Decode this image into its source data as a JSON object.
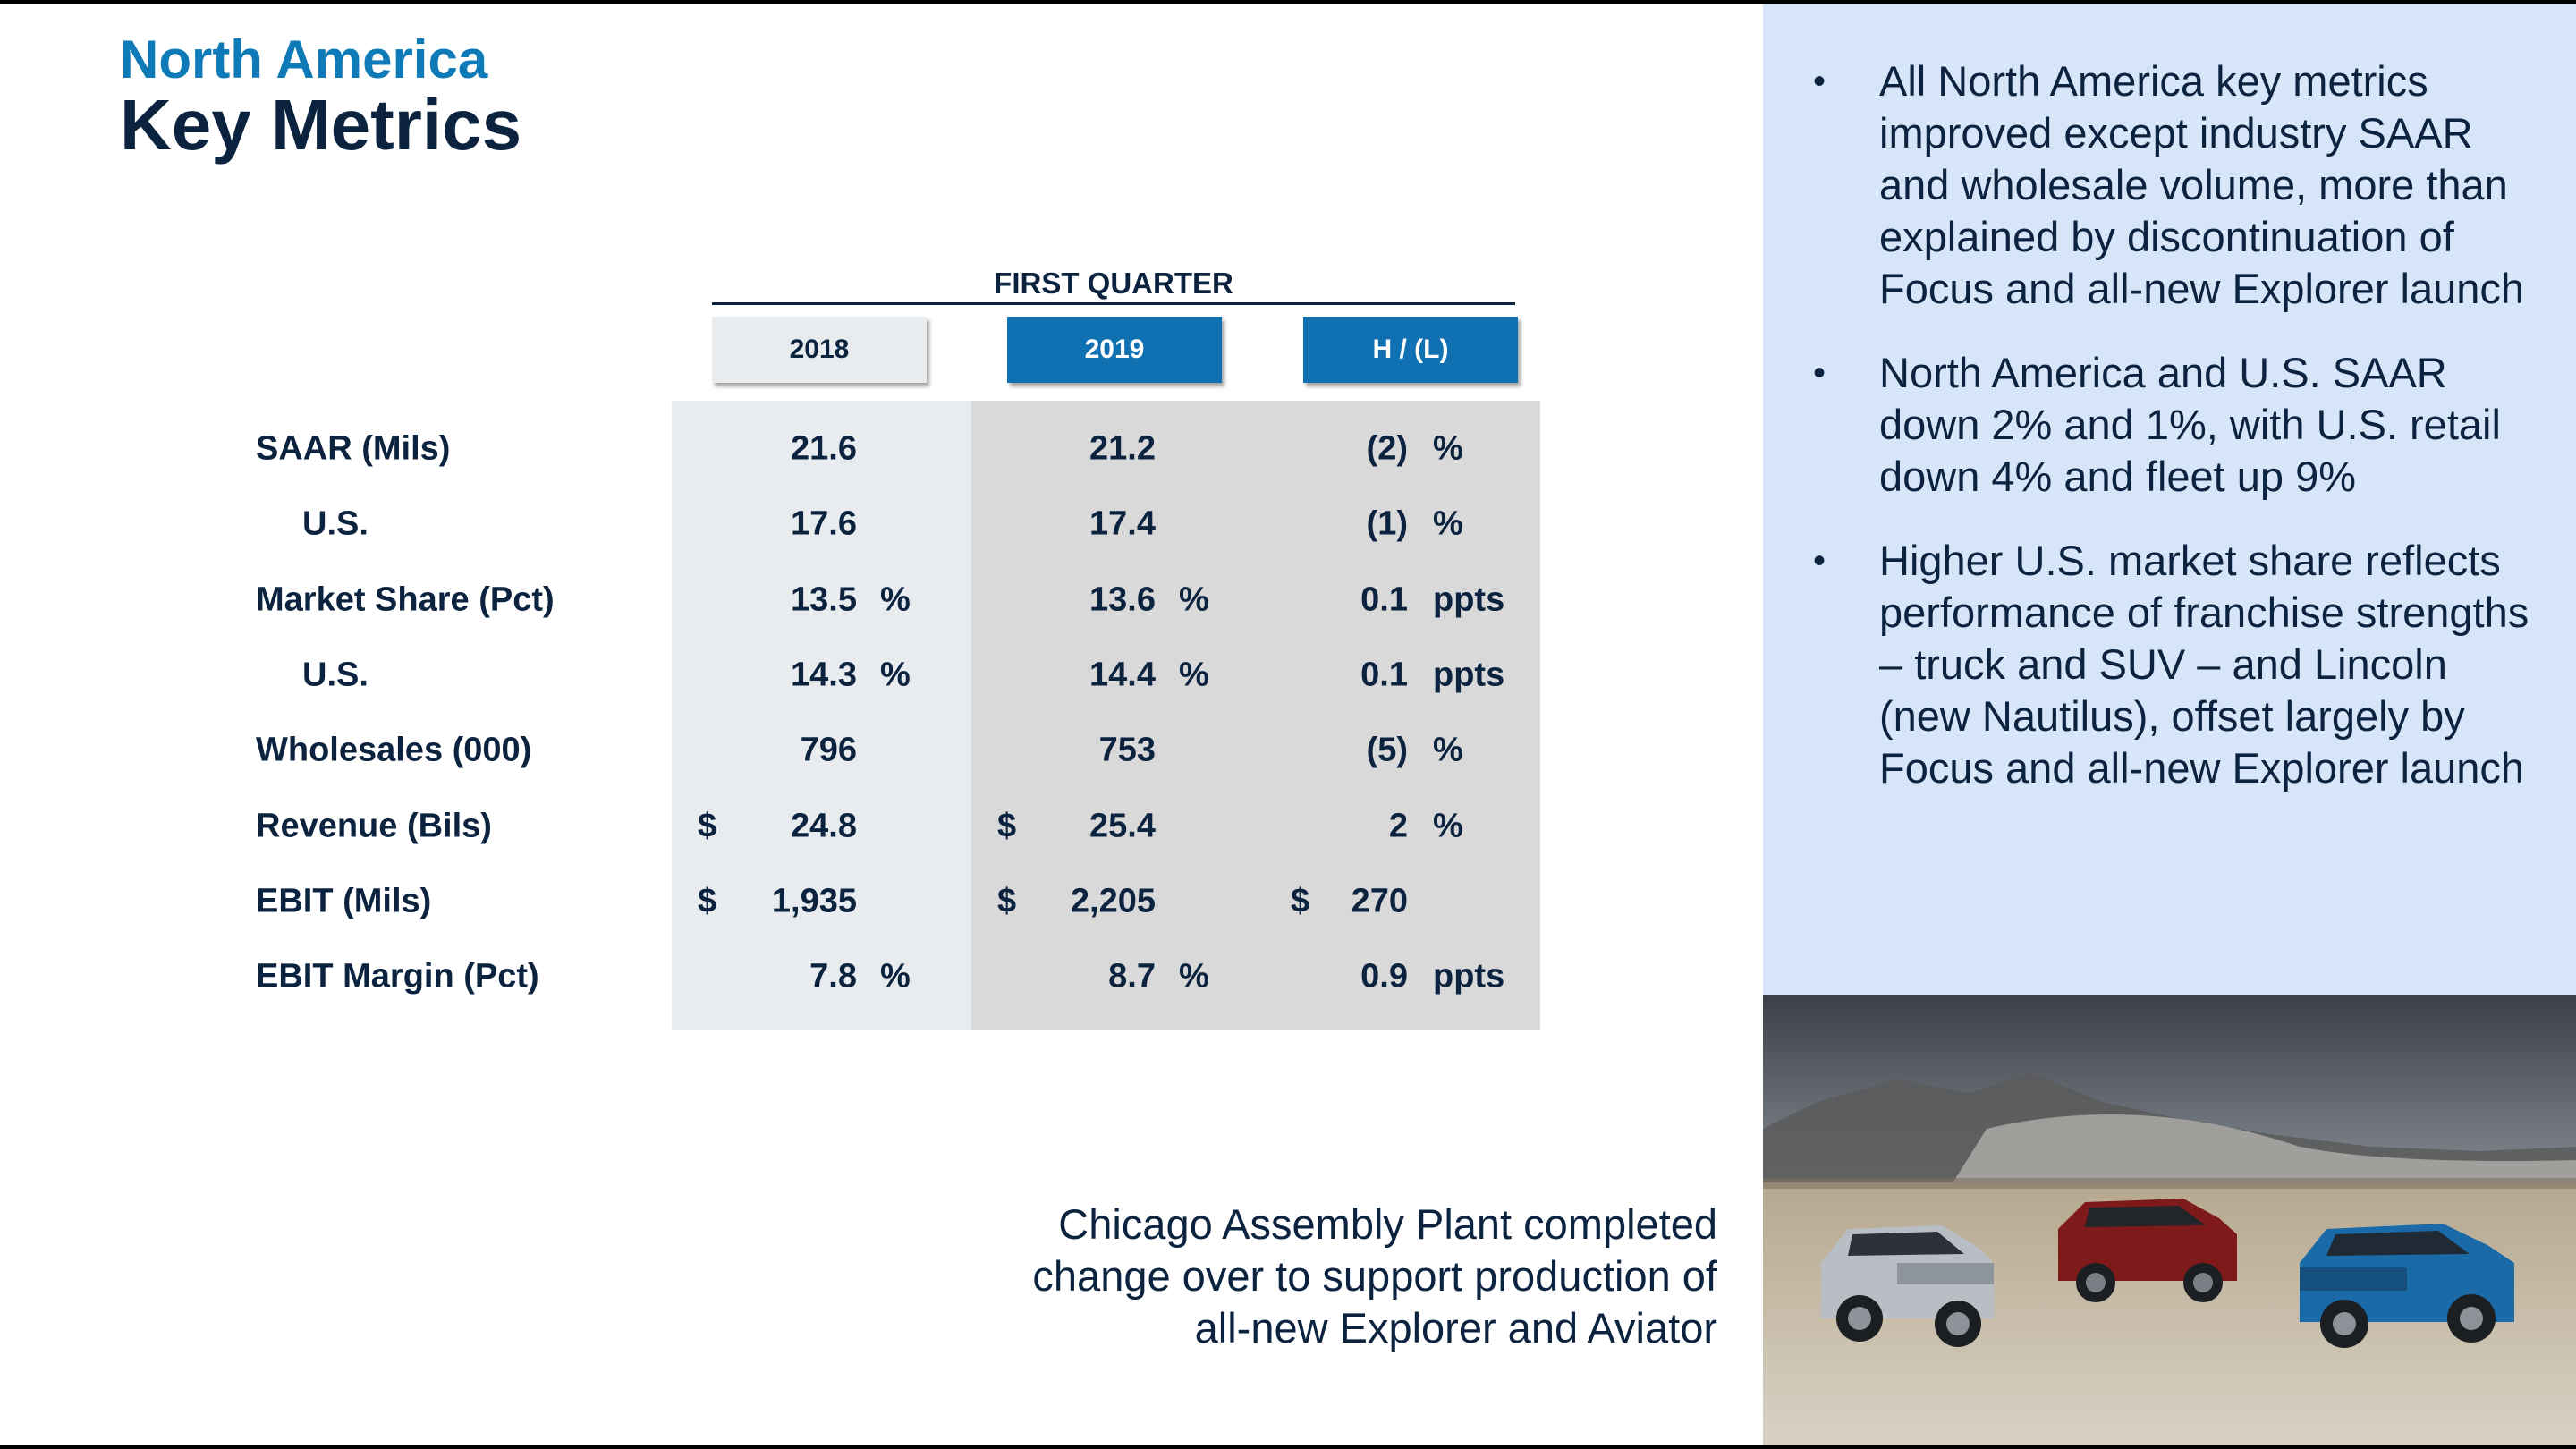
{
  "header": {
    "region": "North America",
    "title": "Key Metrics"
  },
  "table": {
    "group_label": "FIRST QUARTER",
    "columns": [
      "2018",
      "2019",
      "H / (L)"
    ],
    "rows": [
      {
        "label": "SAAR (Mils)",
        "indent": false,
        "c2018": {
          "cur": "",
          "val": "21.6",
          "unit": ""
        },
        "c2019": {
          "cur": "",
          "val": "21.2",
          "unit": ""
        },
        "chg": {
          "cur": "",
          "val": "(2)",
          "unit": "%"
        }
      },
      {
        "label": "U.S.",
        "indent": true,
        "c2018": {
          "cur": "",
          "val": "17.6",
          "unit": ""
        },
        "c2019": {
          "cur": "",
          "val": "17.4",
          "unit": ""
        },
        "chg": {
          "cur": "",
          "val": "(1)",
          "unit": "%"
        }
      },
      {
        "label": "Market Share (Pct)",
        "indent": false,
        "c2018": {
          "cur": "",
          "val": "13.5",
          "unit": "%"
        },
        "c2019": {
          "cur": "",
          "val": "13.6",
          "unit": "%"
        },
        "chg": {
          "cur": "",
          "val": "0.1",
          "unit": "ppts"
        }
      },
      {
        "label": "U.S.",
        "indent": true,
        "c2018": {
          "cur": "",
          "val": "14.3",
          "unit": "%"
        },
        "c2019": {
          "cur": "",
          "val": "14.4",
          "unit": "%"
        },
        "chg": {
          "cur": "",
          "val": "0.1",
          "unit": "ppts"
        }
      },
      {
        "label": "Wholesales (000)",
        "indent": false,
        "c2018": {
          "cur": "",
          "val": "796",
          "unit": ""
        },
        "c2019": {
          "cur": "",
          "val": "753",
          "unit": ""
        },
        "chg": {
          "cur": "",
          "val": "(5)",
          "unit": "%"
        }
      },
      {
        "label": "Revenue (Bils)",
        "indent": false,
        "c2018": {
          "cur": "$",
          "val": "24.8",
          "unit": ""
        },
        "c2019": {
          "cur": "$",
          "val": "25.4",
          "unit": ""
        },
        "chg": {
          "cur": "",
          "val": "2",
          "unit": "%"
        }
      },
      {
        "label": "EBIT (Mils)",
        "indent": false,
        "c2018": {
          "cur": "$",
          "val": "1,935",
          "unit": ""
        },
        "c2019": {
          "cur": "$",
          "val": "2,205",
          "unit": ""
        },
        "chg": {
          "cur": "$",
          "val": "270",
          "unit": ""
        }
      },
      {
        "label": "EBIT Margin (Pct)",
        "indent": false,
        "c2018": {
          "cur": "",
          "val": "7.8",
          "unit": "%"
        },
        "c2019": {
          "cur": "",
          "val": "8.7",
          "unit": "%"
        },
        "chg": {
          "cur": "",
          "val": "0.9",
          "unit": "ppts"
        }
      }
    ]
  },
  "caption": {
    "lines": [
      "Chicago Assembly Plant completed",
      "change over to support production of",
      "all-new Explorer and Aviator"
    ]
  },
  "sidebar": {
    "bullet_glyph": "•",
    "bullets": [
      "All North America key metrics improved except industry SAAR and wholesale volume, more than explained by discontinuation of Focus and all-new Explorer launch",
      "North America and U.S. SAAR down 2% and 1%, with U.S. retail down 4% and fleet up 9%",
      "Higher U.S. market share reflects performance of franchise strengths – truck and SUV – and Lincoln (new Nautilus), offset largely by Focus and all-new Explorer launch"
    ]
  },
  "colors": {
    "navy": "#0c2340",
    "accent_blue": "#0f71b2",
    "band_light": "#e9ecef",
    "band_dark": "#d9d9d9",
    "sidebar_bg": "#d6e6f8"
  },
  "photo": {
    "icon": "photo-suv-lineup"
  }
}
